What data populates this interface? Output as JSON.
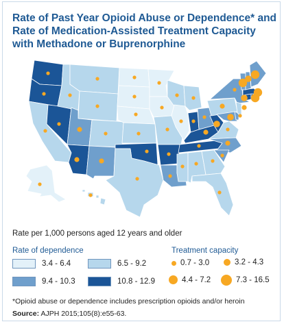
{
  "title_lines": [
    "Rate of Past Year Opioid Abuse or Dependence* and",
    "Rate of Medication-Assisted Treatment Capacity",
    "with Methadone or Buprenorphine"
  ],
  "subtitle": "Rate per 1,000 persons aged 12 years and older",
  "legend": {
    "dependence_heading": "Rate of dependence",
    "dependence_classes": [
      {
        "label": "3.4 - 6.4",
        "color": "#e3f1f9"
      },
      {
        "label": "6.5 - 9.2",
        "color": "#b6d7ec"
      },
      {
        "label": "9.4 - 10.3",
        "color": "#6f9fcc"
      },
      {
        "label": "10.8 - 12.9",
        "color": "#1b5597"
      }
    ],
    "capacity_heading": "Treatment capacity",
    "capacity_classes": [
      {
        "label": "0.7 - 3.0",
        "size_rank": 1
      },
      {
        "label": "3.2 - 4.3",
        "size_rank": 2
      },
      {
        "label": "4.4 - 7.2",
        "size_rank": 3
      },
      {
        "label": "7.3 - 16.5",
        "size_rank": 4
      }
    ],
    "dot_color": "#f7a823"
  },
  "footnote": "*Opioid abuse or dependence includes prescription opioids and/or heroin",
  "source_label": "Source:",
  "source_text": "AJPH 2015;105(8):e55-63.",
  "map": {
    "states_dependence_class": {
      "WA": 4,
      "OR": 4,
      "CA": 2,
      "NV": 4,
      "ID": 2,
      "MT": 2,
      "WY": 2,
      "UT": 3,
      "AZ": 4,
      "CO": 2,
      "NM": 3,
      "ND": 1,
      "SD": 1,
      "NE": 1,
      "KS": 2,
      "OK": 4,
      "TX": 2,
      "MN": 1,
      "IA": 1,
      "MO": 2,
      "AR": 4,
      "LA": 3,
      "WI": 2,
      "IL": 1,
      "MS": 2,
      "MI": 2,
      "IN": 4,
      "KY": 4,
      "TN": 4,
      "AL": 2,
      "GA": 2,
      "FL": 2,
      "OH": 3,
      "WV": 4,
      "VA": 2,
      "NC": 3,
      "SC": 3,
      "PA": 2,
      "NY": 3,
      "MD": 3,
      "DE": 3,
      "NJ": 2,
      "CT": 4,
      "RI": 4,
      "MA": 4,
      "VT": 3,
      "NH": 3,
      "ME": 3,
      "AK": 1,
      "HI": 2
    },
    "treatment_capacity_class": {
      "WA": 1,
      "OR": 1,
      "CA": 1,
      "NV": 1,
      "ID": 1,
      "MT": 1,
      "WY": 1,
      "UT": 2,
      "AZ": 2,
      "CO": 1,
      "NM": 2,
      "ND": 1,
      "SD": 1,
      "NE": 1,
      "KS": 1,
      "OK": 1,
      "TX": 1,
      "MN": 1,
      "IA": 1,
      "MO": 1,
      "AR": 1,
      "LA": 1,
      "WI": 1,
      "IL": 1,
      "MS": 1,
      "MI": 1,
      "IN": 1,
      "KY": 2,
      "TN": 1,
      "AL": 1,
      "GA": 1,
      "FL": 1,
      "OH": 1,
      "WV": 3,
      "VA": 1,
      "NC": 2,
      "SC": 1,
      "PA": 2,
      "NY": 1,
      "MD": 3,
      "DE": 1,
      "NJ": 2,
      "CT": 3,
      "RI": 4,
      "MA": 4,
      "VT": 4,
      "NH": 3,
      "ME": 4,
      "AK": 1,
      "HI": 1
    }
  }
}
